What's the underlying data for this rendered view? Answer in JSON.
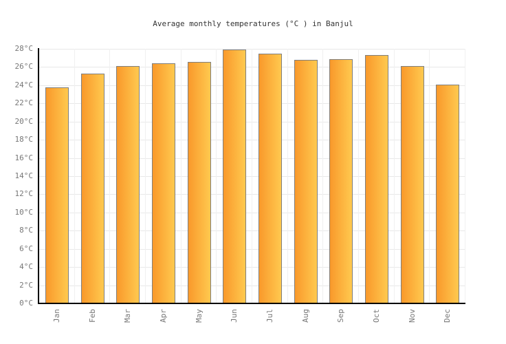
{
  "chart_data": {
    "type": "bar",
    "title": "Average monthly temperatures (°C ) in Banjul",
    "categories": [
      "Jan",
      "Feb",
      "Mar",
      "Apr",
      "May",
      "Jun",
      "Jul",
      "Aug",
      "Sep",
      "Oct",
      "Nov",
      "Dec"
    ],
    "values": [
      23.8,
      25.3,
      26.1,
      26.4,
      26.6,
      27.9,
      27.5,
      26.8,
      26.9,
      27.3,
      26.1,
      24.1
    ],
    "unit": "°C",
    "xlabel": "",
    "ylabel": "",
    "ylim": [
      0,
      28
    ],
    "ytick_step": 2,
    "ytick_labels": [
      "0°C",
      "2°C",
      "4°C",
      "6°C",
      "8°C",
      "10°C",
      "12°C",
      "14°C",
      "16°C",
      "18°C",
      "20°C",
      "22°C",
      "24°C",
      "26°C",
      "28°C"
    ],
    "grid": true,
    "legend": false,
    "x_label_rotation_deg": -90,
    "colors": {
      "background": "#FFFFFF",
      "bar_gradient_left": "#F9992B",
      "bar_gradient_right": "#FFC94F",
      "bar_border": "#7E7E7E",
      "gridline_horizontal": "#E8E8E8",
      "gridline_vertical": "#F0F0F0",
      "axis": "#000000",
      "tick_label": "#777777",
      "title": "#333333"
    }
  }
}
